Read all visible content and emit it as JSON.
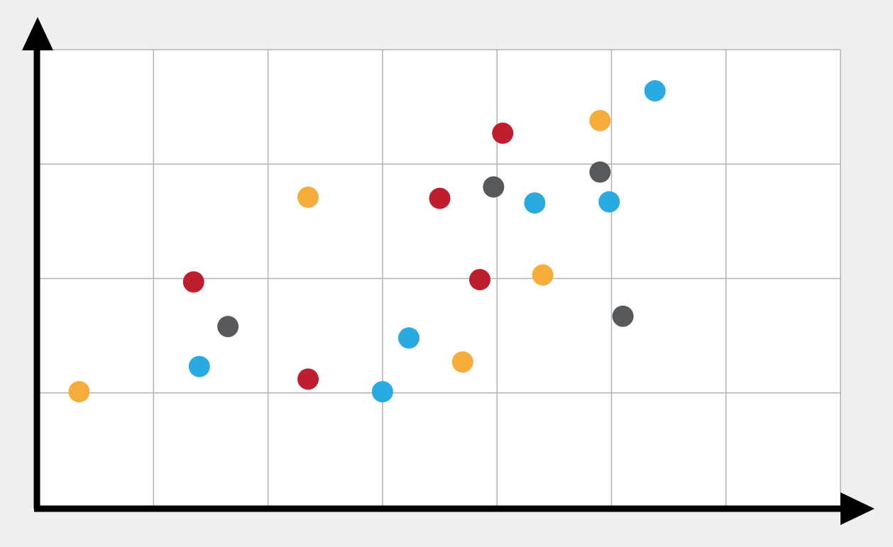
{
  "chart_data": {
    "type": "scatter",
    "title": "",
    "xlabel": "",
    "ylabel": "",
    "xlim": [
      0,
      7
    ],
    "ylim": [
      0,
      4
    ],
    "grid": true,
    "legend": "none",
    "background": "#efefef",
    "plot_background": "#ffffff",
    "grid_color": "#b3b3b3",
    "axis_color": "#000000",
    "series": [
      {
        "color": "#f6ad3c",
        "points": [
          {
            "x": 0.35,
            "y": 1.01
          },
          {
            "x": 2.35,
            "y": 2.71
          },
          {
            "x": 3.7,
            "y": 1.27
          },
          {
            "x": 4.4,
            "y": 2.03
          },
          {
            "x": 4.9,
            "y": 3.38
          }
        ]
      },
      {
        "color": "#bf1e2e",
        "points": [
          {
            "x": 1.35,
            "y": 1.97
          },
          {
            "x": 2.35,
            "y": 1.12
          },
          {
            "x": 3.5,
            "y": 2.7
          },
          {
            "x": 3.85,
            "y": 1.99
          },
          {
            "x": 4.05,
            "y": 3.27
          }
        ]
      },
      {
        "color": "#29abe2",
        "points": [
          {
            "x": 1.4,
            "y": 1.23
          },
          {
            "x": 3.0,
            "y": 1.01
          },
          {
            "x": 3.23,
            "y": 1.48
          },
          {
            "x": 4.33,
            "y": 2.66
          },
          {
            "x": 4.98,
            "y": 2.67
          },
          {
            "x": 5.38,
            "y": 3.64
          }
        ]
      },
      {
        "color": "#58595b",
        "points": [
          {
            "x": 1.65,
            "y": 1.58
          },
          {
            "x": 3.97,
            "y": 2.8
          },
          {
            "x": 4.9,
            "y": 2.93
          },
          {
            "x": 5.1,
            "y": 1.67
          }
        ]
      }
    ]
  }
}
